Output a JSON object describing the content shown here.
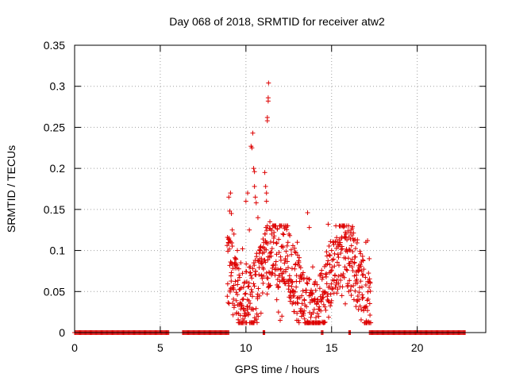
{
  "chart_data": {
    "type": "scatter",
    "title": "Day 068 of 2018, SRMTID for receiver atw2",
    "xlabel": "GPS time / hours",
    "ylabel": "SRMTID / TECUs",
    "xlim": [
      0,
      24
    ],
    "ylim": [
      0,
      0.35
    ],
    "xticks": [
      0,
      5,
      10,
      15,
      20
    ],
    "xtick_labels": [
      "0",
      "5",
      "10",
      "15",
      "20"
    ],
    "yticks": [
      0,
      0.05,
      0.1,
      0.15,
      0.2,
      0.25,
      0.3,
      0.35
    ],
    "ytick_labels": [
      "0",
      "0.05",
      "0.1",
      "0.15",
      "0.2",
      "0.25",
      "0.3",
      "0.35"
    ],
    "grid": true,
    "marker": "+",
    "series": [
      {
        "name": "SRMTID",
        "color": "#dd0000",
        "zero_ranges": [
          [
            0.0,
            5.5
          ],
          [
            6.3,
            9.0
          ],
          [
            11.0,
            11.1
          ],
          [
            14.4,
            14.5
          ],
          [
            16.0,
            16.1
          ],
          [
            17.2,
            22.8
          ]
        ],
        "active_window": [
          8.9,
          17.3
        ],
        "points": [
          [
            9.0,
            0.165
          ],
          [
            9.1,
            0.17
          ],
          [
            9.05,
            0.148
          ],
          [
            9.15,
            0.145
          ],
          [
            9.2,
            0.125
          ],
          [
            9.3,
            0.12
          ],
          [
            9.4,
            0.09
          ],
          [
            9.5,
            0.1
          ],
          [
            9.6,
            0.07
          ],
          [
            9.7,
            0.085
          ],
          [
            9.8,
            0.102
          ],
          [
            9.9,
            0.06
          ],
          [
            10.0,
            0.16
          ],
          [
            10.1,
            0.17
          ],
          [
            10.2,
            0.125
          ],
          [
            10.25,
            0.08
          ],
          [
            10.3,
            0.227
          ],
          [
            10.35,
            0.225
          ],
          [
            10.4,
            0.243
          ],
          [
            10.45,
            0.2
          ],
          [
            10.5,
            0.196
          ],
          [
            10.5,
            0.178
          ],
          [
            10.55,
            0.165
          ],
          [
            10.6,
            0.158
          ],
          [
            10.7,
            0.14
          ],
          [
            10.8,
            0.1
          ],
          [
            10.9,
            0.07
          ],
          [
            11.0,
            0.06
          ],
          [
            11.1,
            0.195
          ],
          [
            11.15,
            0.178
          ],
          [
            11.2,
            0.17
          ],
          [
            11.2,
            0.16
          ],
          [
            11.25,
            0.262
          ],
          [
            11.25,
            0.258
          ],
          [
            11.3,
            0.286
          ],
          [
            11.3,
            0.282
          ],
          [
            11.32,
            0.304
          ],
          [
            11.4,
            0.135
          ],
          [
            11.5,
            0.12
          ],
          [
            11.6,
            0.11
          ],
          [
            11.7,
            0.07
          ],
          [
            11.8,
            0.04
          ],
          [
            11.9,
            0.025
          ],
          [
            12.0,
            0.015
          ],
          [
            12.1,
            0.02
          ],
          [
            12.3,
            0.09
          ],
          [
            12.5,
            0.06
          ],
          [
            12.7,
            0.05
          ],
          [
            13.0,
            0.11
          ],
          [
            13.2,
            0.07
          ],
          [
            13.4,
            0.04
          ],
          [
            13.6,
            0.146
          ],
          [
            13.7,
            0.128
          ],
          [
            13.9,
            0.08
          ],
          [
            14.0,
            0.06
          ],
          [
            14.2,
            0.04
          ],
          [
            14.5,
            0.05
          ],
          [
            14.8,
            0.132
          ],
          [
            15.0,
            0.1
          ],
          [
            15.2,
            0.07
          ],
          [
            15.4,
            0.06
          ],
          [
            15.6,
            0.045
          ],
          [
            15.8,
            0.035
          ],
          [
            16.0,
            0.05
          ],
          [
            16.2,
            0.08
          ],
          [
            16.4,
            0.06
          ],
          [
            16.6,
            0.04
          ],
          [
            16.8,
            0.07
          ],
          [
            17.0,
            0.11
          ],
          [
            17.1,
            0.112
          ],
          [
            17.2,
            0.09
          ],
          [
            17.25,
            0.06
          ]
        ]
      }
    ]
  }
}
